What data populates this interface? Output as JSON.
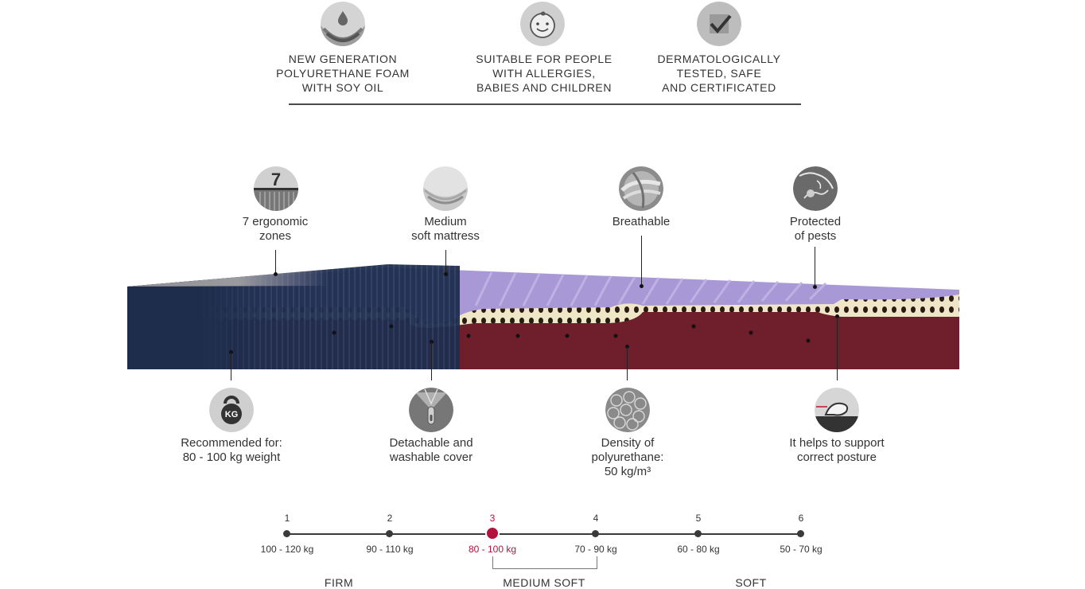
{
  "top_features": [
    {
      "icon": "drop-layers-icon",
      "label": "NEW GENERATION\nPOLYURETHANE FOAM\nWITH SOY OIL"
    },
    {
      "icon": "baby-face-icon",
      "label": "SUITABLE FOR PEOPLE\nWITH ALLERGIES,\nBABIES AND CHILDREN"
    },
    {
      "icon": "checkmark-icon",
      "label": "DERMATOLOGICALLY\nTESTED, SAFE\nAND CERTIFICATED"
    }
  ],
  "upper_features": [
    {
      "icon": "seven-zones-icon",
      "label": "7 ergonomic\nzones",
      "badge": "7"
    },
    {
      "icon": "medium-soft-icon",
      "label": "Medium\nsoft mattress"
    },
    {
      "icon": "breathable-icon",
      "label": "Breathable"
    },
    {
      "icon": "pest-protection-icon",
      "label": "Protected\nof pests"
    }
  ],
  "lower_features": [
    {
      "icon": "kettlebell-icon",
      "label": "Recommended for:\n80 - 100 kg weight",
      "badge": "KG"
    },
    {
      "icon": "zipper-icon",
      "label": "Detachable and\nwashable cover"
    },
    {
      "icon": "foam-density-icon",
      "label": "Density of\npolyurethane:\n50 kg/m³"
    },
    {
      "icon": "posture-icon",
      "label": "It helps to support\ncorrect posture"
    }
  ],
  "firmness_scale": {
    "selected_index": 2,
    "active_color": "#b3123d",
    "steps": [
      {
        "num": "1",
        "range": "100 - 120 kg"
      },
      {
        "num": "2",
        "range": "90 - 110 kg"
      },
      {
        "num": "3",
        "range": "80 - 100 kg"
      },
      {
        "num": "4",
        "range": "70 - 90 kg"
      },
      {
        "num": "5",
        "range": "60 - 80 kg"
      },
      {
        "num": "6",
        "range": "50 - 70 kg"
      }
    ],
    "categories": [
      "FIRM",
      "MEDIUM SOFT",
      "SOFT"
    ]
  },
  "colors": {
    "cover_navy": "#1f2d4d",
    "top_layer_lilac": "#a899d6",
    "comfort_layer_cream": "#efe6c8",
    "base_foam_maroon": "#6e1f2b",
    "icon_gray": "#9a9a9a"
  }
}
